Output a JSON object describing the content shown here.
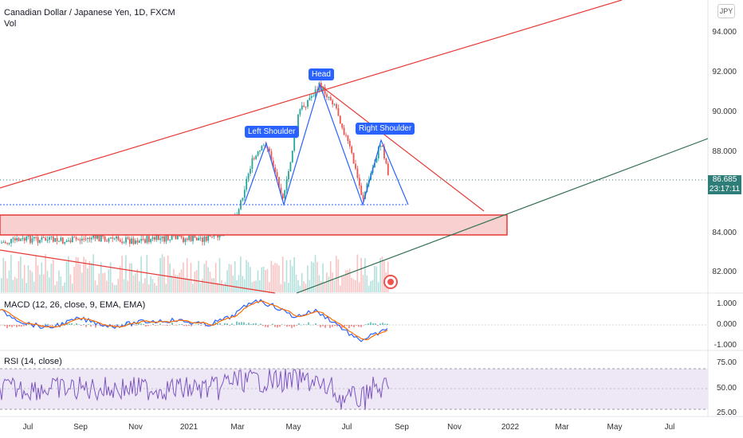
{
  "header": {
    "title": "Canadian Dollar / Japanese Yen, 1D, FXCM",
    "volume_label": "Vol",
    "currency_badge": "JPY"
  },
  "price_axis": {
    "labels": [
      "94.000",
      "92.000",
      "90.000",
      "88.000",
      "86.685",
      "84.000",
      "82.000"
    ],
    "last_price": "86.685",
    "countdown": "23:17:11"
  },
  "time_axis": {
    "labels": [
      "Jul",
      "Sep",
      "Nov",
      "2021",
      "Mar",
      "May",
      "Jul",
      "Sep",
      "Nov",
      "2022",
      "Mar",
      "May",
      "Jul"
    ]
  },
  "annotations": {
    "left_shoulder": "Left Shoulder",
    "head": "Head",
    "right_shoulder": "Right Shoulder"
  },
  "macd": {
    "label": "MACD (12, 26, close, 9, EMA, EMA)",
    "axis_labels": [
      "1.000",
      "0.000",
      "-1.000"
    ]
  },
  "rsi": {
    "label": "RSI (14, close)",
    "axis_labels": [
      "75.00",
      "50.00",
      "25.00"
    ]
  },
  "colors": {
    "up": "#26a69a",
    "down": "#ef5350",
    "trendline": "#e53935",
    "support_zone": "#f8d0d0",
    "pattern_line": "#2962ff",
    "long_trendline": "#2e6e4e",
    "macd_line": "#2962ff",
    "signal_line": "#ff6d00",
    "rsi_line": "#7e57c2"
  }
}
